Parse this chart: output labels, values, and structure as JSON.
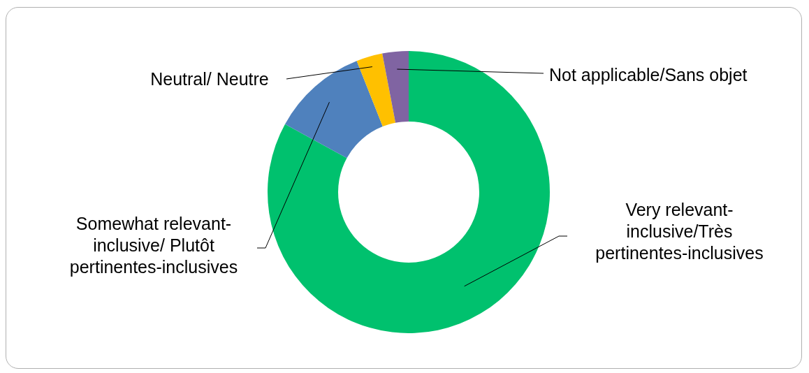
{
  "chart_data": {
    "type": "donut",
    "categories": [
      "Very relevant-inclusive/Très pertinentes-inclusives",
      "Somewhat relevant-inclusive/ Plutôt pertinentes-inclusives",
      "Neutral/ Neutre",
      "Not applicable/Sans objet"
    ],
    "values": [
      83,
      11,
      3,
      3
    ],
    "colors": [
      "#00c16e",
      "#4f81bd",
      "#ffc000",
      "#8064a2"
    ],
    "legend": false
  }
}
